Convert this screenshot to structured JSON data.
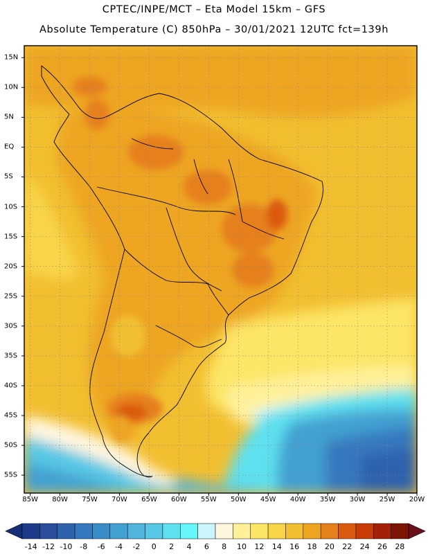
{
  "header": {
    "line1": "CPTEC/INPE/MCT –  Eta Model 15km – GFS",
    "line2": "Absolute Temperature (C) 850hPa – 30/01/2021 12UTC fct=139h"
  },
  "map": {
    "lon_labels": [
      "85W",
      "80W",
      "75W",
      "70W",
      "65W",
      "60W",
      "55W",
      "50W",
      "45W",
      "40W",
      "35W",
      "30W",
      "25W",
      "20W"
    ],
    "lat_labels": [
      "15N",
      "10N",
      "5N",
      "EQ",
      "5S",
      "10S",
      "15S",
      "20S",
      "25S",
      "30S",
      "35S",
      "40S",
      "45S",
      "50S",
      "55S"
    ],
    "lon_values": [
      -85,
      -80,
      -75,
      -70,
      -65,
      -60,
      -55,
      -50,
      -45,
      -40,
      -35,
      -30,
      -25,
      -20
    ],
    "lat_values": [
      15,
      10,
      5,
      0,
      -5,
      -10,
      -15,
      -20,
      -25,
      -30,
      -35,
      -40,
      -45,
      -50,
      -55
    ],
    "lon_range": [
      -86,
      -20
    ],
    "lat_range": [
      17,
      -58
    ],
    "grid": true
  },
  "colorbar": {
    "labels": [
      "-14",
      "-12",
      "-10",
      "-8",
      "-6",
      "-4",
      "-2",
      "0",
      "2",
      "4",
      "6",
      "8",
      "10",
      "12",
      "14",
      "16",
      "18",
      "20",
      "22",
      "24",
      "26",
      "28"
    ],
    "colors": [
      "#1e3a8a",
      "#2a4e9b",
      "#2f62ad",
      "#3478bd",
      "#3a8cc7",
      "#42a0d2",
      "#4fb5dd",
      "#56c8e5",
      "#5ee0ee",
      "#66f5f8",
      "#c9f5fb",
      "#fff6e0",
      "#fff19a",
      "#fde566",
      "#f8d548",
      "#f2bf30",
      "#eda520",
      "#e6801a",
      "#dc5a10",
      "#c83c08",
      "#a32106",
      "#7c1603"
    ],
    "under_color": "#142f74",
    "over_color": "#6a0f1c"
  }
}
